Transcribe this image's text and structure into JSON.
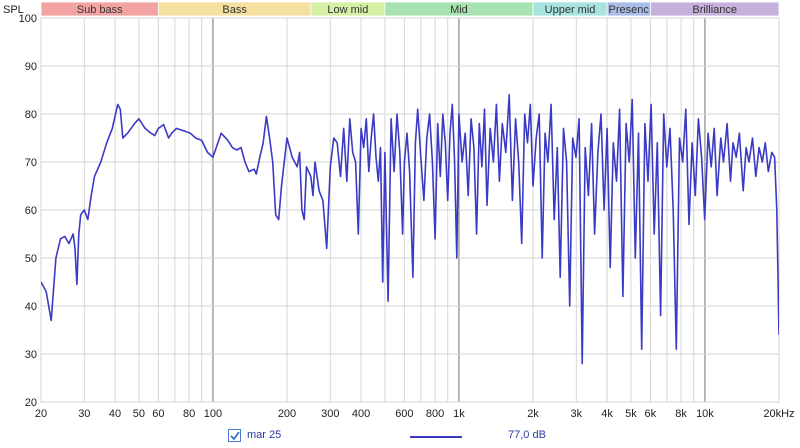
{
  "chart_data": {
    "type": "line",
    "x_scale": "log",
    "y_axis_label": "SPL",
    "x_unit_label": "kHz",
    "xlim": [
      20,
      20000
    ],
    "ylim": [
      20,
      100
    ],
    "y_ticks": [
      20,
      30,
      40,
      50,
      60,
      70,
      80,
      90,
      100
    ],
    "x_ticks": [
      {
        "v": 20,
        "label": "20"
      },
      {
        "v": 30,
        "label": "30"
      },
      {
        "v": 40,
        "label": "40"
      },
      {
        "v": 50,
        "label": "50"
      },
      {
        "v": 60,
        "label": "60"
      },
      {
        "v": 80,
        "label": "80"
      },
      {
        "v": 100,
        "label": "100"
      },
      {
        "v": 200,
        "label": "200"
      },
      {
        "v": 300,
        "label": "300"
      },
      {
        "v": 400,
        "label": "400"
      },
      {
        "v": 600,
        "label": "600"
      },
      {
        "v": 800,
        "label": "800"
      },
      {
        "v": 1000,
        "label": "1k"
      },
      {
        "v": 2000,
        "label": "2k"
      },
      {
        "v": 3000,
        "label": "3k"
      },
      {
        "v": 4000,
        "label": "4k"
      },
      {
        "v": 5000,
        "label": "5k"
      },
      {
        "v": 6000,
        "label": "6k"
      },
      {
        "v": 8000,
        "label": "8k"
      },
      {
        "v": 10000,
        "label": "10k"
      },
      {
        "v": 20000,
        "label": "20kHz"
      }
    ],
    "grid": true,
    "bands": [
      {
        "label": "Sub bass",
        "from": 20,
        "to": 60,
        "color": "#f4a3a3"
      },
      {
        "label": "Bass",
        "from": 60,
        "to": 250,
        "color": "#f5e0a0"
      },
      {
        "label": "Low mid",
        "from": 250,
        "to": 500,
        "color": "#d5efa5"
      },
      {
        "label": "Mid",
        "from": 500,
        "to": 2000,
        "color": "#a6e3b0"
      },
      {
        "label": "Upper mid",
        "from": 2000,
        "to": 4000,
        "color": "#a8e3e0"
      },
      {
        "label": "Presenc",
        "from": 4000,
        "to": 6000,
        "color": "#a9bde8"
      },
      {
        "label": "Brilliance",
        "from": 6000,
        "to": 20000,
        "color": "#c6b0dc"
      }
    ],
    "series": [
      {
        "name": "mar 25",
        "color": "#3b3ac4",
        "points": [
          [
            20,
            45
          ],
          [
            21,
            43
          ],
          [
            22,
            37
          ],
          [
            23,
            50
          ],
          [
            24,
            54
          ],
          [
            25,
            54.5
          ],
          [
            26,
            53
          ],
          [
            27,
            55
          ],
          [
            27.5,
            52
          ],
          [
            28,
            44.5
          ],
          [
            28.5,
            55
          ],
          [
            29,
            59
          ],
          [
            30,
            60
          ],
          [
            31,
            58
          ],
          [
            32,
            63
          ],
          [
            33,
            67
          ],
          [
            35,
            70
          ],
          [
            37,
            74
          ],
          [
            39,
            77
          ],
          [
            41,
            82
          ],
          [
            42,
            81
          ],
          [
            43,
            75
          ],
          [
            45,
            76
          ],
          [
            48,
            78
          ],
          [
            50,
            79
          ],
          [
            53,
            77
          ],
          [
            56,
            76
          ],
          [
            58,
            75.5
          ],
          [
            60,
            77
          ],
          [
            63,
            77.8
          ],
          [
            66,
            75
          ],
          [
            68,
            76
          ],
          [
            71,
            77
          ],
          [
            76,
            76.5
          ],
          [
            81,
            76
          ],
          [
            85,
            75
          ],
          [
            90,
            74.5
          ],
          [
            95,
            72
          ],
          [
            100,
            71
          ],
          [
            108,
            76
          ],
          [
            115,
            74.5
          ],
          [
            120,
            73
          ],
          [
            125,
            72.5
          ],
          [
            130,
            73
          ],
          [
            135,
            70
          ],
          [
            140,
            68
          ],
          [
            147,
            68.5
          ],
          [
            150,
            67.5
          ],
          [
            155,
            71
          ],
          [
            160,
            74
          ],
          [
            165,
            79.5
          ],
          [
            170,
            75
          ],
          [
            175,
            70
          ],
          [
            180,
            59
          ],
          [
            185,
            58
          ],
          [
            190,
            65
          ],
          [
            200,
            75
          ],
          [
            210,
            71
          ],
          [
            220,
            69
          ],
          [
            225,
            72
          ],
          [
            230,
            60
          ],
          [
            235,
            58
          ],
          [
            240,
            69
          ],
          [
            250,
            67
          ],
          [
            255,
            63
          ],
          [
            260,
            70
          ],
          [
            270,
            64
          ],
          [
            280,
            62
          ],
          [
            290,
            52
          ],
          [
            300,
            69
          ],
          [
            310,
            75
          ],
          [
            320,
            74
          ],
          [
            330,
            67
          ],
          [
            340,
            77
          ],
          [
            350,
            66
          ],
          [
            360,
            79
          ],
          [
            370,
            72
          ],
          [
            380,
            70
          ],
          [
            390,
            55
          ],
          [
            400,
            77
          ],
          [
            410,
            73
          ],
          [
            420,
            79
          ],
          [
            430,
            68
          ],
          [
            440,
            75
          ],
          [
            450,
            80
          ],
          [
            460,
            71
          ],
          [
            470,
            66
          ],
          [
            480,
            73
          ],
          [
            490,
            45
          ],
          [
            500,
            72
          ],
          [
            515,
            41
          ],
          [
            530,
            79
          ],
          [
            545,
            68
          ],
          [
            560,
            80
          ],
          [
            575,
            72
          ],
          [
            590,
            55
          ],
          [
            600,
            70
          ],
          [
            615,
            76
          ],
          [
            630,
            68
          ],
          [
            650,
            46
          ],
          [
            665,
            74
          ],
          [
            680,
            81
          ],
          [
            700,
            71
          ],
          [
            720,
            62
          ],
          [
            740,
            75
          ],
          [
            760,
            80
          ],
          [
            780,
            70
          ],
          [
            800,
            54
          ],
          [
            820,
            78
          ],
          [
            840,
            67
          ],
          [
            860,
            80
          ],
          [
            880,
            74
          ],
          [
            900,
            62
          ],
          [
            920,
            76
          ],
          [
            940,
            82
          ],
          [
            960,
            70
          ],
          [
            980,
            50
          ],
          [
            1000,
            80
          ],
          [
            1030,
            70
          ],
          [
            1060,
            76
          ],
          [
            1090,
            63
          ],
          [
            1120,
            79
          ],
          [
            1150,
            73
          ],
          [
            1180,
            55
          ],
          [
            1210,
            78
          ],
          [
            1240,
            69
          ],
          [
            1270,
            81
          ],
          [
            1300,
            61
          ],
          [
            1340,
            77
          ],
          [
            1380,
            70
          ],
          [
            1420,
            82
          ],
          [
            1460,
            66
          ],
          [
            1500,
            78
          ],
          [
            1550,
            72
          ],
          [
            1600,
            84
          ],
          [
            1650,
            62
          ],
          [
            1700,
            79
          ],
          [
            1750,
            70
          ],
          [
            1800,
            53
          ],
          [
            1850,
            80
          ],
          [
            1900,
            74
          ],
          [
            1950,
            82
          ],
          [
            2000,
            65
          ],
          [
            2060,
            75
          ],
          [
            2120,
            80
          ],
          [
            2180,
            50
          ],
          [
            2240,
            76
          ],
          [
            2300,
            70
          ],
          [
            2370,
            82
          ],
          [
            2440,
            58
          ],
          [
            2510,
            73
          ],
          [
            2580,
            46
          ],
          [
            2660,
            77
          ],
          [
            2740,
            70
          ],
          [
            2820,
            40
          ],
          [
            2900,
            75
          ],
          [
            2990,
            71
          ],
          [
            3080,
            79
          ],
          [
            3170,
            28
          ],
          [
            3260,
            73
          ],
          [
            3360,
            63
          ],
          [
            3460,
            78
          ],
          [
            3560,
            55
          ],
          [
            3670,
            72
          ],
          [
            3780,
            80
          ],
          [
            3890,
            60
          ],
          [
            4000,
            77
          ],
          [
            4120,
            48
          ],
          [
            4240,
            74
          ],
          [
            4370,
            66
          ],
          [
            4500,
            81
          ],
          [
            4640,
            42
          ],
          [
            4780,
            78
          ],
          [
            4920,
            70
          ],
          [
            5060,
            83
          ],
          [
            5210,
            50
          ],
          [
            5370,
            76
          ],
          [
            5530,
            31
          ],
          [
            5700,
            78
          ],
          [
            5870,
            66
          ],
          [
            6040,
            82
          ],
          [
            6220,
            55
          ],
          [
            6400,
            74
          ],
          [
            6600,
            38
          ],
          [
            6800,
            80
          ],
          [
            7000,
            69
          ],
          [
            7210,
            77
          ],
          [
            7430,
            60
          ],
          [
            7650,
            31
          ],
          [
            7880,
            75
          ],
          [
            8120,
            70
          ],
          [
            8360,
            81
          ],
          [
            8610,
            57
          ],
          [
            8870,
            74
          ],
          [
            9140,
            63
          ],
          [
            9410,
            79
          ],
          [
            9690,
            71
          ],
          [
            9980,
            58
          ],
          [
            10300,
            76
          ],
          [
            10600,
            69
          ],
          [
            10900,
            77
          ],
          [
            11200,
            63
          ],
          [
            11600,
            75
          ],
          [
            11900,
            70
          ],
          [
            12300,
            78
          ],
          [
            12700,
            66
          ],
          [
            13000,
            74
          ],
          [
            13400,
            71
          ],
          [
            13800,
            76
          ],
          [
            14300,
            64
          ],
          [
            14700,
            73
          ],
          [
            15100,
            70
          ],
          [
            15600,
            75
          ],
          [
            16100,
            67
          ],
          [
            16600,
            73
          ],
          [
            17100,
            70
          ],
          [
            17600,
            74
          ],
          [
            18100,
            68
          ],
          [
            18700,
            72
          ],
          [
            19200,
            71
          ],
          [
            19600,
            60
          ],
          [
            20000,
            34
          ]
        ]
      }
    ],
    "legend": {
      "checked": true,
      "readout": "77,0 dB"
    }
  }
}
